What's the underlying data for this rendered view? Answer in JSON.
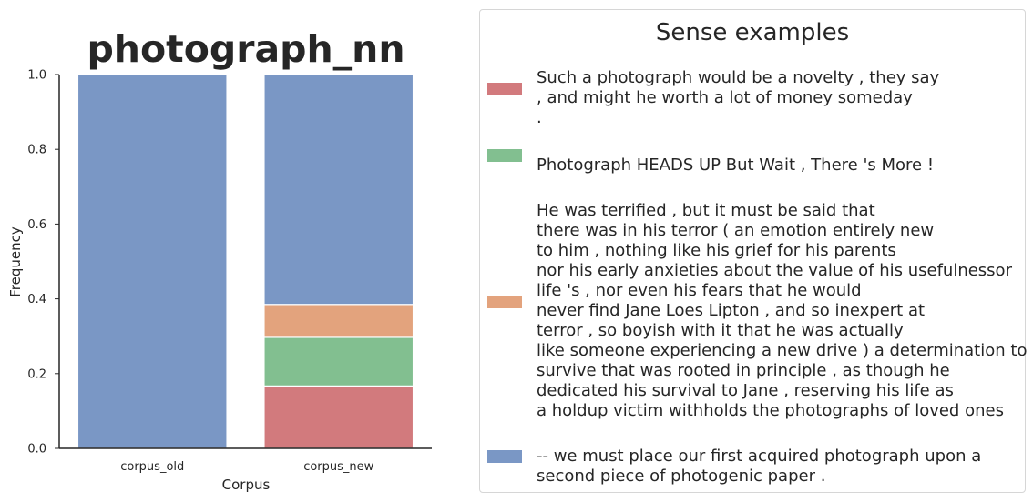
{
  "chart_data": {
    "type": "bar",
    "stacked": true,
    "title": "photograph_nn",
    "xlabel": "Corpus",
    "ylabel": "Frequency",
    "ylim": [
      0,
      1.0
    ],
    "yticks": [
      "0.0",
      "0.2",
      "0.4",
      "0.6",
      "0.8",
      "1.0"
    ],
    "categories": [
      "corpus_old",
      "corpus_new"
    ],
    "series": [
      {
        "color": "#d27a7d",
        "values": [
          0,
          0.167
        ]
      },
      {
        "color": "#82bf90",
        "values": [
          0,
          0.13
        ]
      },
      {
        "color": "#e3a37d",
        "values": [
          0,
          0.088
        ]
      },
      {
        "color": "#7a97c5",
        "values": [
          1.0,
          0.615
        ]
      }
    ],
    "grid": false,
    "legend_position": "right"
  },
  "legend": {
    "title": "Sense examples",
    "items": [
      {
        "color": "#d27a7d",
        "text": "Such a photograph would be a novelty , they say\n, and might he worth a lot of money someday\n."
      },
      {
        "color": "#82bf90",
        "text": "\nPhotograph HEADS UP But Wait , There 's More !"
      },
      {
        "color": "#e3a37d",
        "text": "He was terrified , but it must be said that\nthere was in his terror ( an emotion entirely new\nto him , nothing like his grief for his parents\nnor his early anxieties about the value of his usefulnessor\nlife 's , nor even his fears that he would\nnever find Jane Loes Lipton , and so inexpert at\nterror , so boyish with it that he was actually\nlike someone experiencing a new drive ) a determination to\nsurvive that was rooted in principle , as though he\ndedicated his survival to Jane , reserving his life as\na holdup victim withholds the photographs of loved ones"
      },
      {
        "color": "#7a97c5",
        "text": "-- we must place our first acquired photograph upon a\nsecond piece of photogenic paper ."
      }
    ]
  }
}
